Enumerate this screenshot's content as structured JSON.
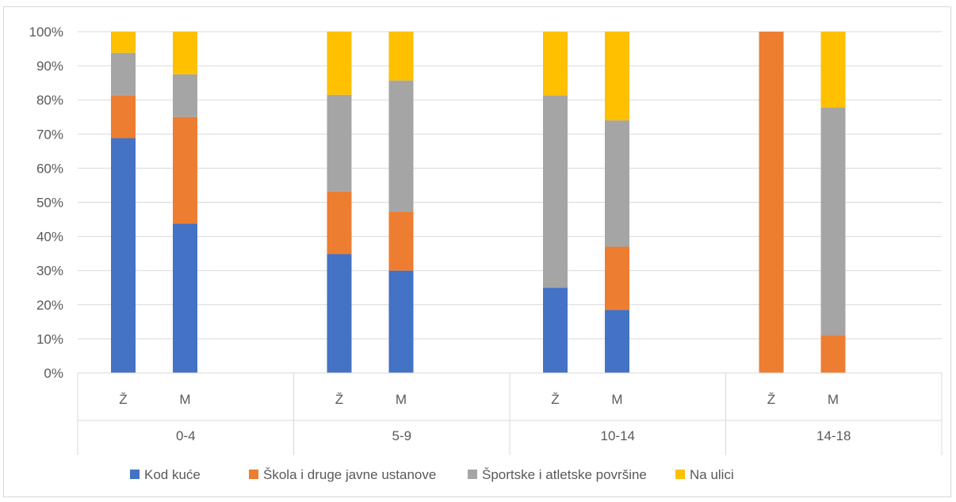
{
  "chart_data": {
    "type": "bar",
    "stacked": true,
    "percent_stacked": true,
    "groups": [
      {
        "label": "0-4",
        "categories": [
          "Ž",
          "M"
        ]
      },
      {
        "label": "5-9",
        "categories": [
          "Ž",
          "M"
        ]
      },
      {
        "label": "10-14",
        "categories": [
          "Ž",
          "M"
        ]
      },
      {
        "label": "14-18",
        "categories": [
          "Ž",
          "M"
        ]
      }
    ],
    "series": [
      {
        "name": "Kod kuće",
        "color": "#4472C4",
        "values": [
          68.8,
          43.8,
          34.8,
          30.0,
          25.0,
          18.5,
          0,
          0
        ]
      },
      {
        "name": "Škola i druge javne ustanove",
        "color": "#ED7D31",
        "values": [
          12.5,
          31.2,
          18.4,
          17.3,
          0,
          18.5,
          100,
          11.1
        ]
      },
      {
        "name": "Športske i atletske površine",
        "color": "#A5A5A5",
        "values": [
          12.5,
          12.5,
          28.3,
          38.4,
          56.3,
          37.0,
          0,
          66.7
        ]
      },
      {
        "name": "Na ulici",
        "color": "#FFC000",
        "values": [
          6.2,
          12.5,
          18.5,
          14.3,
          18.7,
          26.0,
          0,
          22.2
        ]
      }
    ],
    "y_ticks": [
      "0%",
      "10%",
      "20%",
      "30%",
      "40%",
      "50%",
      "60%",
      "70%",
      "80%",
      "90%",
      "100%"
    ],
    "ylim": [
      0,
      100
    ],
    "grid": true,
    "legend_position": "bottom"
  }
}
